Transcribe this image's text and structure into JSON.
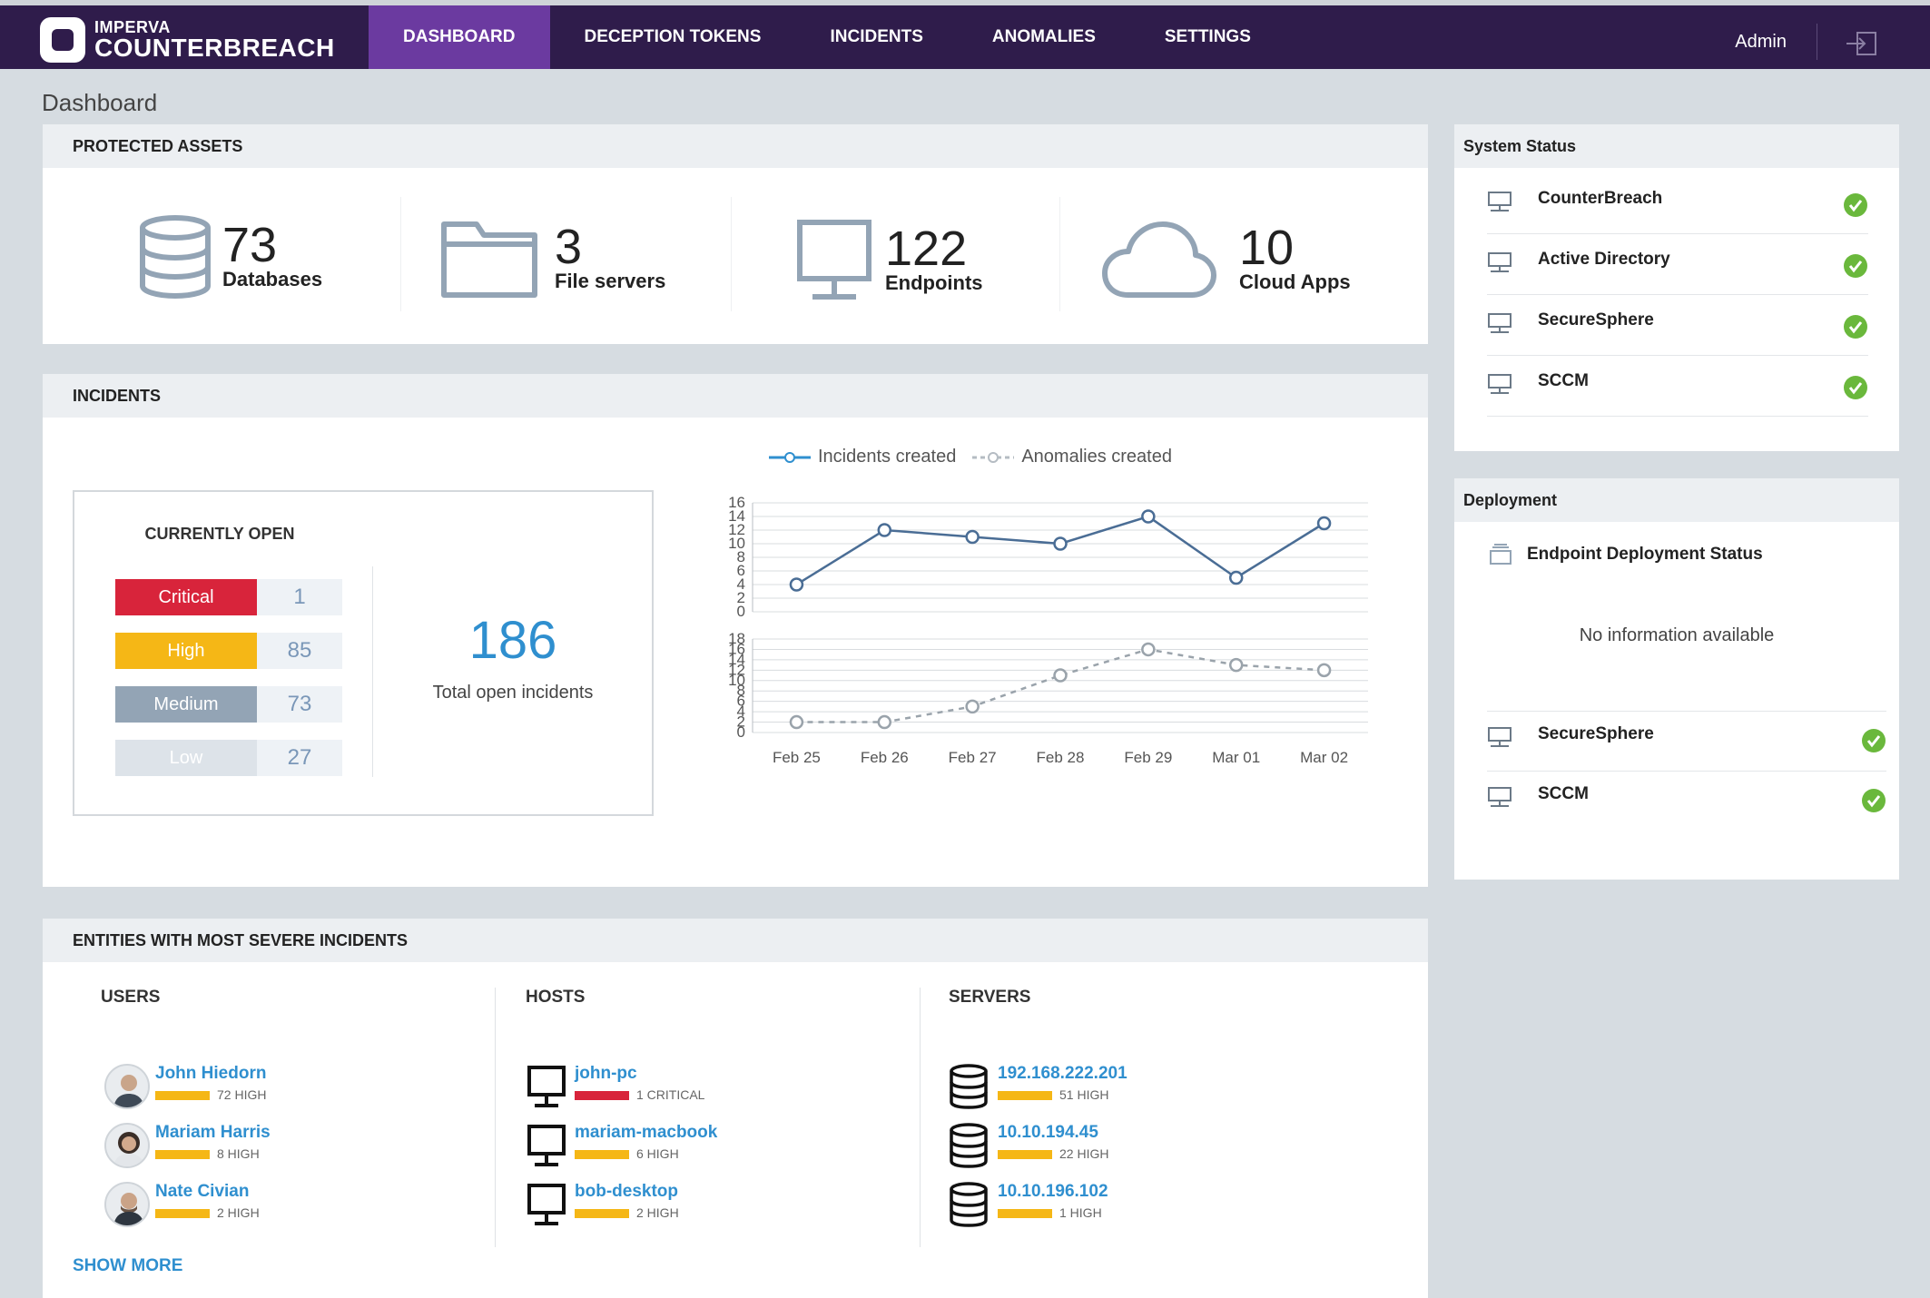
{
  "brand": {
    "company": "IMPERVA",
    "product": "COUNTERBREACH"
  },
  "nav": {
    "items": [
      {
        "label": "DASHBOARD",
        "active": true
      },
      {
        "label": "DECEPTION TOKENS",
        "active": false
      },
      {
        "label": "INCIDENTS",
        "active": false
      },
      {
        "label": "ANOMALIES",
        "active": false
      },
      {
        "label": "SETTINGS",
        "active": false
      }
    ],
    "user": "Admin",
    "logout_icon": "logout-icon"
  },
  "page_title": "Dashboard",
  "protected_assets": {
    "title": "PROTECTED ASSETS",
    "items": [
      {
        "icon": "database-icon",
        "count": "73",
        "label": "Databases"
      },
      {
        "icon": "folder-icon",
        "count": "3",
        "label": "File servers"
      },
      {
        "icon": "monitor-icon",
        "count": "122",
        "label": "Endpoints"
      },
      {
        "icon": "cloud-icon",
        "count": "10",
        "label": "Cloud Apps"
      }
    ]
  },
  "incidents": {
    "title": "INCIDENTS",
    "currently_open": {
      "title": "CURRENTLY OPEN",
      "severities": [
        {
          "label": "Critical",
          "value": "1",
          "color": "#d8243b"
        },
        {
          "label": "High",
          "value": "85",
          "color": "#f5b716"
        },
        {
          "label": "Medium",
          "value": "73",
          "color": "#93a4b5"
        },
        {
          "label": "Low",
          "value": "27",
          "color": "#dde3e9"
        }
      ],
      "total": "186",
      "total_label": "Total open incidents"
    }
  },
  "chart_data": {
    "type": "line",
    "categories": [
      "Feb 25",
      "Feb 26",
      "Feb 27",
      "Feb 28",
      "Feb 29",
      "Mar 01",
      "Mar 02"
    ],
    "series": [
      {
        "name": "Incidents created",
        "values": [
          4,
          12,
          11,
          10,
          14,
          5,
          13
        ],
        "color": "#4a6d95",
        "ylim": [
          0,
          16
        ],
        "yticks": [
          0,
          2,
          4,
          6,
          8,
          10,
          12,
          14,
          16
        ],
        "style": "solid"
      },
      {
        "name": "Anomalies created",
        "values": [
          2,
          2,
          5,
          11,
          16,
          13,
          12
        ],
        "color": "#9aa3ab",
        "ylim": [
          0,
          18
        ],
        "yticks": [
          0,
          2,
          4,
          6,
          8,
          10,
          12,
          14,
          16,
          18
        ],
        "style": "dashed"
      }
    ],
    "legend": "top",
    "grid": true
  },
  "entities": {
    "title": "ENTITIES WITH MOST SEVERE INCIDENTS",
    "users": {
      "title": "USERS",
      "items": [
        {
          "name": "John Hiedorn",
          "count": "72 HIGH",
          "color": "#f5b716"
        },
        {
          "name": "Mariam Harris",
          "count": "8 HIGH",
          "color": "#f5b716"
        },
        {
          "name": "Nate Civian",
          "count": "2 HIGH",
          "color": "#f5b716"
        }
      ]
    },
    "hosts": {
      "title": "HOSTS",
      "items": [
        {
          "name": "john-pc",
          "count": "1 CRITICAL",
          "color": "#d8243b"
        },
        {
          "name": "mariam-macbook",
          "count": "6 HIGH",
          "color": "#f5b716"
        },
        {
          "name": "bob-desktop",
          "count": "2 HIGH",
          "color": "#f5b716"
        }
      ]
    },
    "servers": {
      "title": "SERVERS",
      "items": [
        {
          "name": "192.168.222.201",
          "count": "51 HIGH",
          "color": "#f5b716"
        },
        {
          "name": "10.10.194.45",
          "count": "22 HIGH",
          "color": "#f5b716"
        },
        {
          "name": "10.10.196.102",
          "count": "1 HIGH",
          "color": "#f5b716"
        }
      ]
    },
    "show_more": "SHOW MORE"
  },
  "system_status": {
    "title": "System Status",
    "items": [
      {
        "label": "CounterBreach",
        "status": "ok"
      },
      {
        "label": "Active Directory",
        "status": "ok"
      },
      {
        "label": "SecureSphere",
        "status": "ok"
      },
      {
        "label": "SCCM",
        "status": "ok"
      }
    ]
  },
  "deployment": {
    "title": "Deployment",
    "endpoint_status_title": "Endpoint Deployment Status",
    "no_info": "No information available",
    "items": [
      {
        "label": "SecureSphere",
        "status": "ok"
      },
      {
        "label": "SCCM",
        "status": "ok"
      }
    ]
  },
  "colors": {
    "nav_bg": "#2f1c4b",
    "nav_active": "#6b3aa0",
    "link": "#2f8fcf",
    "ok_green": "#6ab83c"
  }
}
